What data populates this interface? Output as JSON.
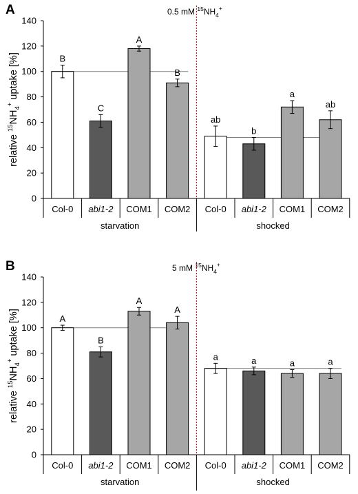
{
  "chart_data": [
    {
      "type": "bar",
      "panel_label": "A",
      "title_prefix": "0.5 mM ",
      "ylabel_parts": [
        "relative ",
        "15",
        "NH",
        "4",
        "+",
        " uptake [%]"
      ],
      "ylim": [
        0,
        140
      ],
      "yticks": [
        "0",
        "20",
        "40",
        "60",
        "80",
        "100",
        "120",
        "140"
      ],
      "groups": [
        {
          "label": "starvation",
          "reference_line": 100
        },
        {
          "label": "shocked",
          "reference_line": 48
        }
      ],
      "categories": [
        "Col-0",
        "abi1-2",
        "COM1",
        "COM2",
        "Col-0",
        "abi1-2",
        "COM1",
        "COM2"
      ],
      "values": [
        100,
        61,
        118,
        91,
        49,
        43,
        72,
        62
      ],
      "errors": [
        5,
        5,
        2,
        3,
        8,
        5,
        5,
        7
      ],
      "significance": [
        "B",
        "C",
        "A",
        "B",
        "ab",
        "b",
        "a",
        "ab"
      ],
      "bar_colors": [
        "#ffffff",
        "#595959",
        "#a6a6a6",
        "#a6a6a6",
        "#ffffff",
        "#595959",
        "#a6a6a6",
        "#a6a6a6"
      ]
    },
    {
      "type": "bar",
      "panel_label": "B",
      "title_prefix": "5 mM ",
      "ylabel_parts": [
        "relative ",
        "15",
        "NH",
        "4",
        "+",
        " uptake [%]"
      ],
      "ylim": [
        0,
        140
      ],
      "yticks": [
        "0",
        "20",
        "40",
        "60",
        "80",
        "100",
        "120",
        "140"
      ],
      "groups": [
        {
          "label": "starvation",
          "reference_line": 100
        },
        {
          "label": "shocked",
          "reference_line": 68
        }
      ],
      "categories": [
        "Col-0",
        "abi1-2",
        "COM1",
        "COM2",
        "Col-0",
        "abi1-2",
        "COM1",
        "COM2"
      ],
      "values": [
        100,
        81,
        113,
        104,
        68,
        66,
        64,
        64
      ],
      "errors": [
        2,
        4,
        3,
        5,
        4,
        3,
        3,
        4
      ],
      "significance": [
        "A",
        "B",
        "A",
        "A",
        "a",
        "a",
        "a",
        "a"
      ],
      "bar_colors": [
        "#ffffff",
        "#595959",
        "#a6a6a6",
        "#a6a6a6",
        "#ffffff",
        "#595959",
        "#a6a6a6",
        "#a6a6a6"
      ]
    }
  ],
  "title_isotope": "15",
  "title_ion": "NH",
  "title_sub": "4",
  "title_sup": "+",
  "italic_category": "abi1-2",
  "colors": {
    "axis": "#000000",
    "bar_edge": "#000000",
    "divider": "#c00000",
    "reference_line": "#808080"
  }
}
